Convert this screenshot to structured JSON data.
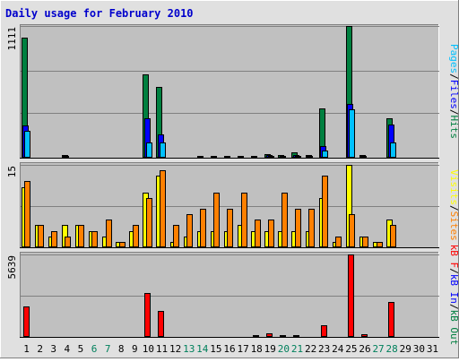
{
  "chart_data": {
    "type": "bar",
    "title": "Daily usage for February 2010",
    "categories": [
      "1",
      "2",
      "3",
      "4",
      "5",
      "6",
      "7",
      "8",
      "9",
      "10",
      "11",
      "12",
      "13",
      "14",
      "15",
      "16",
      "17",
      "18",
      "19",
      "20",
      "21",
      "22",
      "23",
      "24",
      "25",
      "26",
      "27",
      "28",
      "29",
      "30",
      "31"
    ],
    "weekend_days": [
      "6",
      "7",
      "13",
      "14",
      "20",
      "21",
      "27",
      "28"
    ],
    "colors": {
      "background": "#c0c0c0",
      "frame": "#e0e0e0",
      "title": "#0000cc",
      "grid": "#808080",
      "baseline": "#000000",
      "weekday_label": "#000000",
      "weekend_label": "#00805c",
      "pages": "#00c0ff",
      "files": "#0000ff",
      "hits": "#008040",
      "visits": "#ffff00",
      "sites": "#ff8000",
      "kbin": "#0000ff",
      "kbout": "#008040",
      "kbf": "#ff0000"
    },
    "panels": [
      {
        "id": "hits",
        "max_label": "1111",
        "ylim": [
          0,
          1111
        ],
        "legend": [
          {
            "text": "Pages",
            "color": "#00c0ff"
          },
          {
            "text": "/",
            "color": "#000000"
          },
          {
            "text": "Files",
            "color": "#0000ff"
          },
          {
            "text": "/",
            "color": "#000000"
          },
          {
            "text": "Hits",
            "color": "#008040"
          }
        ],
        "series": [
          {
            "name": "Hits",
            "color": "#008040",
            "values": [
              1010,
              8,
              8,
              20,
              8,
              8,
              8,
              8,
              8,
              700,
              595,
              8,
              8,
              15,
              15,
              15,
              15,
              15,
              30,
              20,
              45,
              25,
              415,
              8,
              1111,
              25,
              10,
              335,
              0,
              0,
              0
            ]
          },
          {
            "name": "Files",
            "color": "#0000ff",
            "values": [
              270,
              5,
              5,
              15,
              5,
              5,
              5,
              5,
              5,
              330,
              200,
              5,
              5,
              10,
              10,
              10,
              10,
              10,
              25,
              15,
              25,
              15,
              100,
              5,
              450,
              15,
              5,
              280,
              0,
              0,
              0
            ]
          },
          {
            "name": "Pages",
            "color": "#00c0ff",
            "values": [
              230,
              3,
              3,
              10,
              3,
              3,
              3,
              3,
              3,
              130,
              125,
              3,
              3,
              5,
              5,
              5,
              5,
              5,
              15,
              10,
              15,
              10,
              60,
              3,
              410,
              10,
              3,
              125,
              0,
              0,
              0
            ]
          }
        ]
      },
      {
        "id": "visits",
        "max_label": "15",
        "ylim": [
          0,
          15
        ],
        "legend": [
          {
            "text": "Visits",
            "color": "#ffff00"
          },
          {
            "text": "/",
            "color": "#000000"
          },
          {
            "text": "Sites",
            "color": "#ff8000"
          }
        ],
        "series": [
          {
            "name": "Visits",
            "color": "#ffff00",
            "values": [
              11,
              4,
              2,
              4,
              4,
              3,
              2,
              1,
              3,
              10,
              13,
              1,
              2,
              3,
              3,
              3,
              4,
              3,
              3,
              3,
              3,
              3,
              9,
              1,
              15,
              2,
              1,
              5,
              0,
              0,
              0
            ]
          },
          {
            "name": "Sites",
            "color": "#ff8000",
            "values": [
              12,
              4,
              3,
              2,
              4,
              3,
              5,
              1,
              4,
              9,
              14,
              4,
              6,
              7,
              10,
              7,
              10,
              5,
              5,
              10,
              7,
              7,
              13,
              2,
              6,
              2,
              1,
              4,
              0,
              0,
              0
            ]
          }
        ]
      },
      {
        "id": "kbytes",
        "max_label": "5639",
        "ylim": [
          0,
          5639
        ],
        "legend": [
          {
            "text": "kB F",
            "color": "#ff0000"
          },
          {
            "text": "/",
            "color": "#000000"
          },
          {
            "text": "kB In",
            "color": "#0000ff"
          },
          {
            "text": "/",
            "color": "#000000"
          },
          {
            "text": "kB Out",
            "color": "#008040"
          }
        ],
        "series": [
          {
            "name": "kB F",
            "color": "#ff0000",
            "values": [
              2100,
              60,
              60,
              60,
              60,
              60,
              60,
              60,
              60,
              3000,
              1780,
              60,
              60,
              60,
              60,
              60,
              60,
              120,
              270,
              120,
              120,
              80,
              780,
              60,
              5639,
              200,
              60,
              2380,
              0,
              0,
              0
            ]
          }
        ]
      }
    ]
  }
}
